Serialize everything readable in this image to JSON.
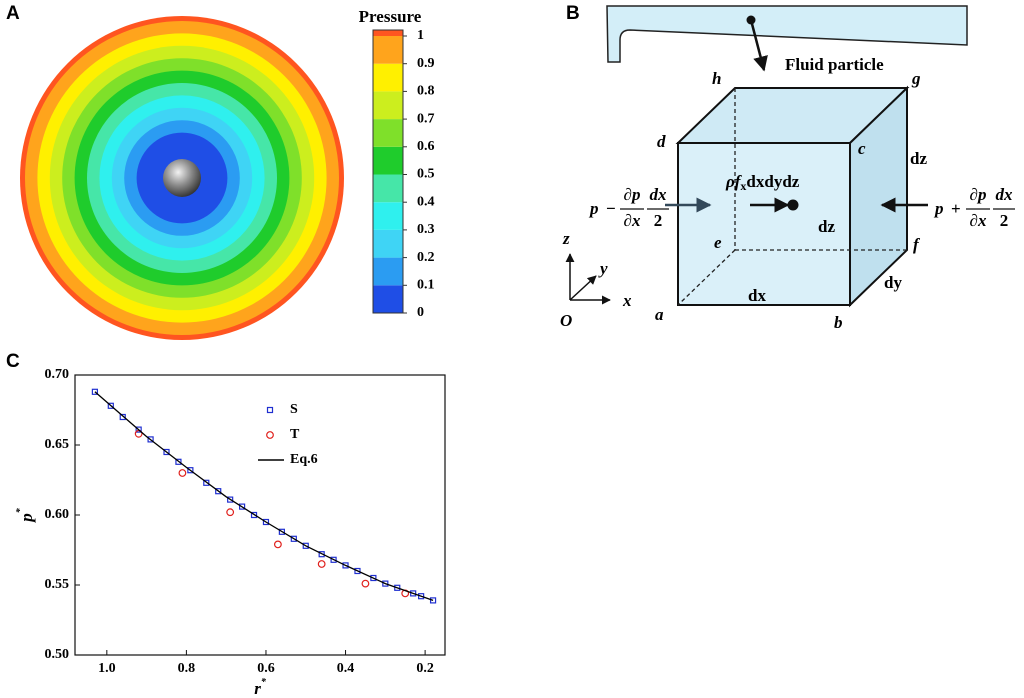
{
  "chart_data": [
    {
      "type": "contour",
      "panel": "A",
      "title": "Pressure",
      "levels": [
        0,
        0.1,
        0.2,
        0.3,
        0.4,
        0.5,
        0.6,
        0.7,
        0.8,
        0.9,
        1
      ],
      "colors": [
        "#1f4ee6",
        "#2b9cf2",
        "#3fd4f5",
        "#2ff0ee",
        "#46e6a8",
        "#1fcc2c",
        "#7fe02a",
        "#ccee1e",
        "#fff000",
        "#ffa41c",
        "#ff5520"
      ]
    },
    {
      "type": "scatter",
      "panel": "C",
      "xlabel": "r",
      "xlabel_sup": "*",
      "ylabel": "p",
      "ylabel_sup": "*",
      "xlim": [
        1.08,
        0.15
      ],
      "xticks": [
        {
          "value": 1.0,
          "label": "1.0"
        },
        0.8,
        0.6,
        0.4,
        0.2
      ],
      "ylim": [
        0.5,
        0.7
      ],
      "yticks": [
        {
          "value": 0.5,
          "label": "0.50"
        },
        0.55,
        {
          "value": 0.6,
          "label": "0.60"
        },
        0.65,
        {
          "value": 0.7,
          "label": "0.70"
        }
      ],
      "series": [
        {
          "name": "S",
          "color": "#1f2fd0",
          "marker": "square",
          "x": [
            1.03,
            0.99,
            0.96,
            0.92,
            0.89,
            0.85,
            0.82,
            0.79,
            0.75,
            0.72,
            0.69,
            0.66,
            0.63,
            0.6,
            0.56,
            0.53,
            0.5,
            0.46,
            0.43,
            0.4,
            0.37,
            0.33,
            0.3,
            0.27,
            0.23,
            0.21,
            0.18
          ],
          "values": [
            0.688,
            0.678,
            0.67,
            0.661,
            0.654,
            0.645,
            0.638,
            0.632,
            0.623,
            0.617,
            0.611,
            0.606,
            0.6,
            0.595,
            0.588,
            0.583,
            0.578,
            0.572,
            0.568,
            0.564,
            0.56,
            0.555,
            0.551,
            0.548,
            0.544,
            0.542,
            0.539
          ]
        },
        {
          "name": "T",
          "color": "#e0201c",
          "marker": "circle",
          "x": [
            0.92,
            0.81,
            0.69,
            0.57,
            0.46,
            0.35,
            0.25
          ],
          "values": [
            0.658,
            0.63,
            0.602,
            0.579,
            0.565,
            0.551,
            0.544
          ]
        },
        {
          "name": "Eq.6",
          "color": "#000000",
          "marker": "line",
          "x": [
            1.03,
            0.9,
            0.8,
            0.7,
            0.6,
            0.5,
            0.4,
            0.3,
            0.18
          ],
          "values": [
            0.688,
            0.656,
            0.634,
            0.613,
            0.595,
            0.578,
            0.564,
            0.551,
            0.539
          ]
        }
      ]
    }
  ],
  "diagram": {
    "panel": "B",
    "title": "Fluid particle",
    "vertices": {
      "a": "a",
      "b": "b",
      "c": "c",
      "d": "d",
      "e": "e",
      "f": "f",
      "g": "g",
      "h": "h"
    },
    "edges": {
      "dx": "dx",
      "dy": "dy",
      "dz_side": "dz",
      "dz_center": "dz"
    },
    "body_force": {
      "main": "ρf",
      "sub": "x",
      "rest": "dxdydz"
    },
    "left_force": {
      "p": "p",
      "op": "−",
      "num1": "∂p",
      "den1": "∂x",
      "num2": "dx",
      "den2": "2"
    },
    "right_force": {
      "p": "p",
      "op": "+",
      "num1": "∂p",
      "den1": "∂x",
      "num2": "dx",
      "den2": "2"
    },
    "axes": {
      "z": "z",
      "y": "y",
      "x": "x",
      "origin": "O"
    }
  }
}
